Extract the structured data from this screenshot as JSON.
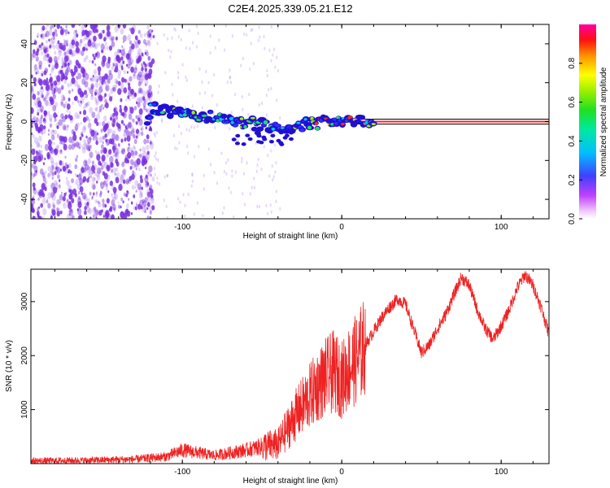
{
  "title": "C2E4.2025.339.05.21.E12",
  "colors": {
    "snr_line": "#ee2222",
    "scatter_purple": "#7a2ee0",
    "frame": "#000000"
  },
  "chart_data": [
    {
      "type": "heatmap",
      "name": "spectrogram",
      "xlabel": "Height of straight line (km)",
      "ylabel": "Frequency (Hz)",
      "xlim": [
        -195,
        130
      ],
      "ylim": [
        -50,
        50
      ],
      "xticks": [
        -100,
        0,
        100
      ],
      "xtick_labels": [
        "-100",
        "0",
        "100"
      ],
      "yticks": [
        40,
        20,
        0,
        -20,
        -40
      ],
      "ytick_labels": [
        "40",
        "20",
        "0",
        "-20",
        "-40"
      ],
      "noise_region_x": [
        -195,
        -118
      ],
      "signal_track": {
        "x": [
          -120,
          -100,
          -80,
          -60,
          -40,
          -20,
          -10,
          0,
          10,
          20,
          40,
          60,
          80,
          100,
          130
        ],
        "y": [
          7,
          4,
          2,
          -1,
          -3,
          -1,
          0,
          1,
          1,
          0,
          0,
          0,
          0,
          0,
          0
        ]
      },
      "colorbar": {
        "label": "Normalized spectral amplitude",
        "range": [
          0,
          1
        ],
        "ticks": [
          0.0,
          0.2,
          0.4,
          0.6,
          0.8
        ],
        "tick_labels": [
          "0.0",
          "0.2",
          "0.4",
          "0.6",
          "0.8"
        ]
      }
    },
    {
      "type": "line",
      "name": "snr",
      "xlabel": "Height of straight line (km)",
      "ylabel": "SNR (10 * v/v)",
      "xlim": [
        -195,
        130
      ],
      "ylim": [
        0,
        3600
      ],
      "xticks": [
        -100,
        0,
        100
      ],
      "xtick_labels": [
        "-100",
        "0",
        "100"
      ],
      "yticks": [
        1000,
        2000,
        3000
      ],
      "ytick_labels": [
        "1000",
        "2000",
        "3000"
      ],
      "series": [
        {
          "name": "SNR",
          "x": [
            -195,
            -160,
            -130,
            -110,
            -100,
            -90,
            -80,
            -70,
            -60,
            -50,
            -40,
            -35,
            -30,
            -25,
            -20,
            -15,
            -10,
            -5,
            0,
            5,
            10,
            15,
            20,
            25,
            30,
            35,
            40,
            45,
            50,
            55,
            60,
            65,
            70,
            75,
            80,
            85,
            90,
            95,
            100,
            105,
            110,
            115,
            120,
            125,
            130
          ],
          "y": [
            50,
            60,
            80,
            130,
            250,
            200,
            150,
            200,
            250,
            320,
            350,
            600,
            850,
            1050,
            1250,
            1450,
            1600,
            1700,
            1550,
            1800,
            1950,
            2200,
            2450,
            2700,
            2900,
            3050,
            2950,
            2500,
            2050,
            2200,
            2500,
            2750,
            3100,
            3450,
            3300,
            2850,
            2500,
            2300,
            2550,
            2850,
            3250,
            3500,
            3300,
            2900,
            2400
          ]
        }
      ]
    }
  ]
}
